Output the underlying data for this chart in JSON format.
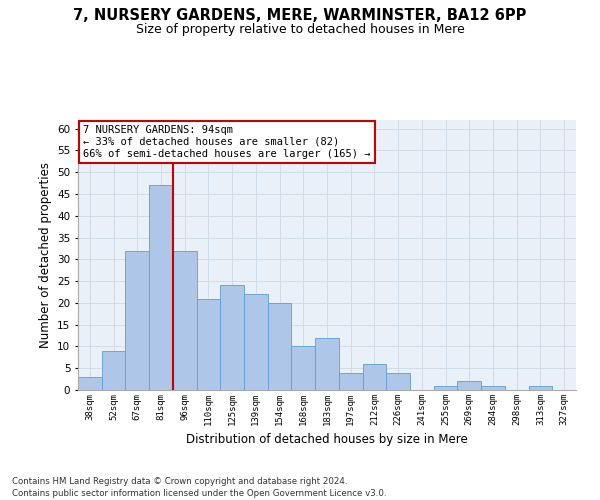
{
  "title_line1": "7, NURSERY GARDENS, MERE, WARMINSTER, BA12 6PP",
  "title_line2": "Size of property relative to detached houses in Mere",
  "xlabel": "Distribution of detached houses by size in Mere",
  "ylabel": "Number of detached properties",
  "categories": [
    "38sqm",
    "52sqm",
    "67sqm",
    "81sqm",
    "96sqm",
    "110sqm",
    "125sqm",
    "139sqm",
    "154sqm",
    "168sqm",
    "183sqm",
    "197sqm",
    "212sqm",
    "226sqm",
    "241sqm",
    "255sqm",
    "269sqm",
    "284sqm",
    "298sqm",
    "313sqm",
    "327sqm"
  ],
  "values": [
    3,
    9,
    32,
    47,
    32,
    21,
    24,
    22,
    20,
    10,
    12,
    4,
    6,
    4,
    0,
    1,
    2,
    1,
    0,
    1,
    0
  ],
  "bar_color": "#aec6e8",
  "bar_edge_color": "#5a9fd4",
  "red_line_x": 3.5,
  "annotation_title": "7 NURSERY GARDENS: 94sqm",
  "annotation_line1": "← 33% of detached houses are smaller (82)",
  "annotation_line2": "66% of semi-detached houses are larger (165) →",
  "annotation_box_color": "#ffffff",
  "annotation_box_edge": "#cc0000",
  "red_line_color": "#cc0000",
  "grid_color": "#d0dce8",
  "ylim": [
    0,
    62
  ],
  "yticks": [
    0,
    5,
    10,
    15,
    20,
    25,
    30,
    35,
    40,
    45,
    50,
    55,
    60
  ],
  "footer_line1": "Contains HM Land Registry data © Crown copyright and database right 2024.",
  "footer_line2": "Contains public sector information licensed under the Open Government Licence v3.0.",
  "bg_color": "#eaf0f8"
}
